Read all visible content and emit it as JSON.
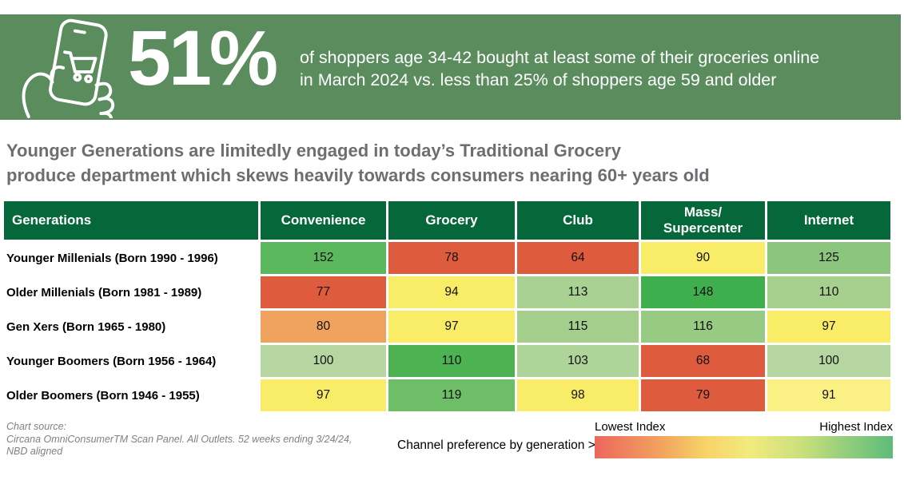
{
  "colors": {
    "banner_bg": "#5A8C5E",
    "table_header_bg": "#06683A",
    "headline_text": "#6D6E71",
    "source_text": "#7E8083",
    "legend_gradient_low": "#EC685B",
    "legend_gradient_mid": "#F3EA7D",
    "legend_gradient_high": "#5FBC7B"
  },
  "banner": {
    "icon": "hand-holding-phone-shopping-cart-icon",
    "stat": "51%",
    "description_line1": "of shoppers age 34-42 bought at least some of their groceries online",
    "description_line2": "in March 2024 vs. less than 25% of shoppers age 59 and older"
  },
  "headline": {
    "line1": "Younger Generations are limitedly engaged in today’s Traditional Grocery",
    "line2": "produce department which skews heavily towards consumers nearing 60+ years old"
  },
  "table": {
    "columns": [
      "Generations",
      "Convenience",
      "Grocery",
      "Club",
      "Mass/ Supercenter",
      "Internet"
    ],
    "rows": [
      {
        "label": "Younger Millenials (Born 1990 - 1996)",
        "values": [
          152,
          78,
          64,
          90,
          125
        ],
        "colors": [
          "#5CB85C",
          "#DF5B3E",
          "#DF5B3E",
          "#F9EC67",
          "#8CC67E"
        ]
      },
      {
        "label": "Older Millenials (Born 1981 - 1989)",
        "values": [
          77,
          94,
          113,
          148,
          110
        ],
        "colors": [
          "#DF5B3E",
          "#F9EC67",
          "#A9D192",
          "#3FAE4C",
          "#A7D08F"
        ]
      },
      {
        "label": "Gen Xers (Born 1965 - 1980)",
        "values": [
          80,
          97,
          115,
          116,
          97
        ],
        "colors": [
          "#F0A35F",
          "#F9EC67",
          "#A3CE8C",
          "#97CA83",
          "#F9EC67"
        ]
      },
      {
        "label": "Younger Boomers (Born 1956 - 1964)",
        "values": [
          100,
          110,
          103,
          68,
          100
        ],
        "colors": [
          "#B5D6A0",
          "#4DB251",
          "#AFD49A",
          "#DF5B3E",
          "#B5D6A0"
        ]
      },
      {
        "label": "Older Boomers (Born 1946 - 1955)",
        "values": [
          97,
          119,
          98,
          79,
          91
        ],
        "colors": [
          "#F9EC67",
          "#6EBE68",
          "#F9EC67",
          "#DF5B3E",
          "#FAF083"
        ]
      }
    ]
  },
  "footer": {
    "source_line1": "Chart source:",
    "source_line2": "Circana OmniConsumerTM Scan Panel. All Outlets. 52 weeks ending 3/24/24,",
    "source_line3": "NBD aligned",
    "legend_caption": "Channel preference by generation >",
    "legend_low": "Lowest Index",
    "legend_high": "Highest Index"
  },
  "chart_data": {
    "type": "heatmap",
    "title": "Channel preference by generation (index values)",
    "columns": [
      "Convenience",
      "Grocery",
      "Club",
      "Mass/Supercenter",
      "Internet"
    ],
    "rows": [
      "Younger Millenials (Born 1990 - 1996)",
      "Older Millenials (Born 1981 - 1989)",
      "Gen Xers (Born 1965 - 1980)",
      "Younger Boomers (Born 1956 - 1964)",
      "Older Boomers (Born 1946 - 1955)"
    ],
    "values": [
      [
        152,
        78,
        64,
        90,
        125
      ],
      [
        77,
        94,
        113,
        148,
        110
      ],
      [
        80,
        97,
        115,
        116,
        97
      ],
      [
        100,
        110,
        103,
        68,
        100
      ],
      [
        97,
        119,
        98,
        79,
        91
      ]
    ],
    "legend": {
      "low_label": "Lowest Index",
      "high_label": "Highest Index",
      "scale": "red-yellow-green"
    },
    "callout_stat": {
      "value": "51%",
      "text": "of shoppers age 34-42 bought at least some of their groceries online in March 2024 vs. less than 25% of shoppers age 59 and older"
    }
  }
}
